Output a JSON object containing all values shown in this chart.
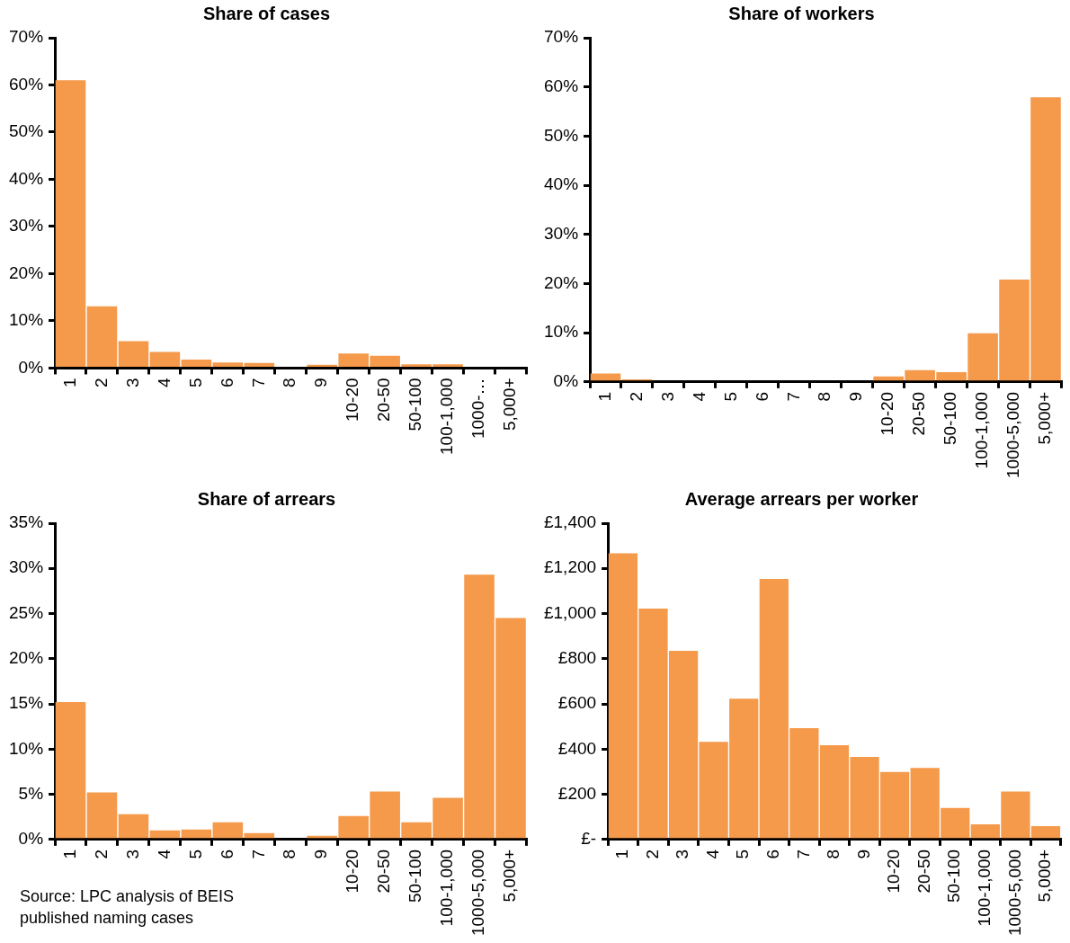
{
  "chart_data": [
    {
      "type": "bar",
      "title": "Share of cases",
      "categories": [
        "1",
        "2",
        "3",
        "4",
        "5",
        "6",
        "7",
        "8",
        "9",
        "10-20",
        "20-50",
        "50-100",
        "100-1,000",
        "1000-…",
        "5,000+"
      ],
      "values": [
        61,
        13.1,
        5.7,
        3.4,
        1.8,
        1.2,
        1.1,
        0,
        0.7,
        3.1,
        2.6,
        0.8,
        0.8,
        0,
        0
      ],
      "color": "#f5994a",
      "ylim": [
        0,
        70
      ],
      "yticks": [
        {
          "value": 0,
          "label": "0%"
        },
        {
          "value": 10,
          "label": "10%"
        },
        {
          "value": 20,
          "label": "20%"
        },
        {
          "value": 30,
          "label": "30%"
        },
        {
          "value": 40,
          "label": "40%"
        },
        {
          "value": 50,
          "label": "50%"
        },
        {
          "value": 60,
          "label": "60%"
        },
        {
          "value": 70,
          "label": "70%"
        }
      ],
      "grid": false,
      "legend": false
    },
    {
      "type": "bar",
      "title": "Share of workers",
      "categories": [
        "1",
        "2",
        "3",
        "4",
        "5",
        "6",
        "7",
        "8",
        "9",
        "10-20",
        "20-50",
        "50-100",
        "100-1,000",
        "1000-5,000",
        "5,000+"
      ],
      "values": [
        1.7,
        0.5,
        0,
        0,
        0,
        0,
        0,
        0,
        0,
        1.1,
        2.4,
        2.0,
        9.9,
        20.8,
        57.9
      ],
      "color": "#f5994a",
      "ylim": [
        0,
        70
      ],
      "yticks": [
        {
          "value": 0,
          "label": "0%"
        },
        {
          "value": 10,
          "label": "10%"
        },
        {
          "value": 20,
          "label": "20%"
        },
        {
          "value": 30,
          "label": "30%"
        },
        {
          "value": 40,
          "label": "40%"
        },
        {
          "value": 50,
          "label": "50%"
        },
        {
          "value": 60,
          "label": "60%"
        },
        {
          "value": 70,
          "label": "70%"
        }
      ],
      "grid": false,
      "legend": false
    },
    {
      "type": "bar",
      "title": "Share of arrears",
      "categories": [
        "1",
        "2",
        "3",
        "4",
        "5",
        "6",
        "7",
        "8",
        "9",
        "10-20",
        "20-50",
        "50-100",
        "100-1,000",
        "1000-5,000",
        "5,000+"
      ],
      "values": [
        15.2,
        5.2,
        2.8,
        1.0,
        1.1,
        1.9,
        0.7,
        0,
        0.4,
        2.6,
        5.3,
        1.9,
        4.6,
        29.3,
        24.5
      ],
      "color": "#f5994a",
      "ylim": [
        0,
        35
      ],
      "yticks": [
        {
          "value": 0,
          "label": "0%"
        },
        {
          "value": 5,
          "label": "5%"
        },
        {
          "value": 10,
          "label": "10%"
        },
        {
          "value": 15,
          "label": "15%"
        },
        {
          "value": 20,
          "label": "20%"
        },
        {
          "value": 25,
          "label": "25%"
        },
        {
          "value": 30,
          "label": "30%"
        },
        {
          "value": 35,
          "label": "35%"
        }
      ],
      "grid": false,
      "legend": false,
      "annotations": [
        "Source: LPC analysis of BEIS published naming cases"
      ]
    },
    {
      "type": "bar",
      "title": "Average arrears per worker",
      "categories": [
        "1",
        "2",
        "3",
        "4",
        "5",
        "6",
        "7",
        "8",
        "9",
        "10-20",
        "20-50",
        "50-100",
        "100-1,000",
        "1000-5,000",
        "5,000+"
      ],
      "values": [
        1267,
        1022,
        835,
        432,
        623,
        1153,
        493,
        417,
        365,
        299,
        317,
        140,
        67,
        212,
        59
      ],
      "color": "#f5994a",
      "ylim": [
        0,
        1400
      ],
      "yticks": [
        {
          "value": 0,
          "label": "£-"
        },
        {
          "value": 200,
          "label": "£200"
        },
        {
          "value": 400,
          "label": "£400"
        },
        {
          "value": 600,
          "label": "£600"
        },
        {
          "value": 800,
          "label": "£800"
        },
        {
          "value": 1000,
          "label": "£1,000"
        },
        {
          "value": 1200,
          "label": "£1,200"
        },
        {
          "value": 1400,
          "label": "£1,400"
        }
      ],
      "grid": false,
      "legend": false
    }
  ]
}
